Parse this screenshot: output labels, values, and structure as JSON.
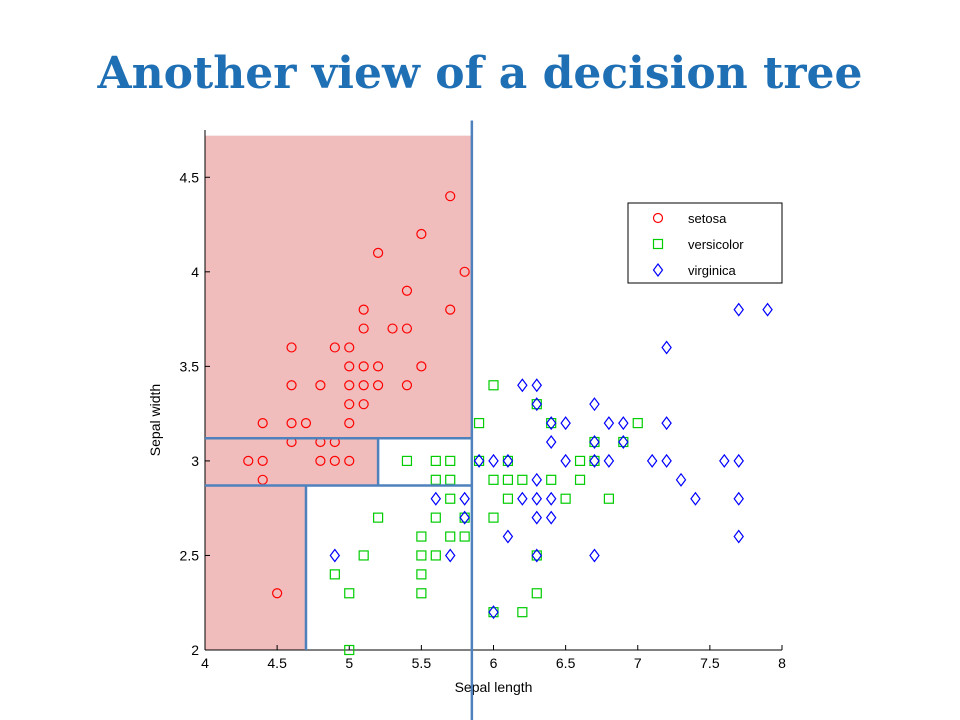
{
  "slide": {
    "title": "Another view of a decision tree"
  },
  "colors": {
    "title": "#1f6fb5",
    "region_fill": "#f0bcbc",
    "split_line": "#4f81bd",
    "setosa": "#ff0000",
    "versicolor": "#00cc00",
    "virginica": "#0000ff"
  },
  "chart_data": {
    "type": "scatter",
    "title": "",
    "xlabel": "Sepal length",
    "ylabel": "Sepal width",
    "xlim": [
      4,
      8
    ],
    "ylim": [
      2,
      4.75
    ],
    "xticks": [
      "4",
      "4.5",
      "5",
      "5.5",
      "6",
      "6.5",
      "7",
      "7.5",
      "8"
    ],
    "yticks": [
      "2",
      "2.5",
      "3",
      "3.5",
      "4",
      "4.5"
    ],
    "grid": false,
    "legend_position": "top-right",
    "series": [
      {
        "name": "setosa",
        "marker": "circle",
        "points": [
          [
            4.3,
            3.0
          ],
          [
            4.4,
            3.0
          ],
          [
            4.4,
            2.9
          ],
          [
            4.4,
            3.2
          ],
          [
            4.5,
            2.3
          ],
          [
            4.6,
            3.1
          ],
          [
            4.6,
            3.2
          ],
          [
            4.6,
            3.4
          ],
          [
            4.6,
            3.6
          ],
          [
            4.7,
            3.2
          ],
          [
            4.8,
            3.0
          ],
          [
            4.8,
            3.1
          ],
          [
            4.8,
            3.4
          ],
          [
            4.9,
            3.0
          ],
          [
            4.9,
            3.1
          ],
          [
            4.9,
            3.6
          ],
          [
            5.0,
            3.0
          ],
          [
            5.0,
            3.2
          ],
          [
            5.0,
            3.3
          ],
          [
            5.0,
            3.4
          ],
          [
            5.0,
            3.5
          ],
          [
            5.0,
            3.6
          ],
          [
            5.1,
            3.3
          ],
          [
            5.1,
            3.4
          ],
          [
            5.1,
            3.5
          ],
          [
            5.1,
            3.7
          ],
          [
            5.1,
            3.8
          ],
          [
            5.2,
            3.4
          ],
          [
            5.2,
            3.5
          ],
          [
            5.2,
            4.1
          ],
          [
            5.3,
            3.7
          ],
          [
            5.4,
            3.4
          ],
          [
            5.4,
            3.7
          ],
          [
            5.4,
            3.9
          ],
          [
            5.5,
            3.5
          ],
          [
            5.5,
            4.2
          ],
          [
            5.7,
            3.8
          ],
          [
            5.7,
            4.4
          ],
          [
            5.8,
            4.0
          ]
        ]
      },
      {
        "name": "versicolor",
        "marker": "square",
        "points": [
          [
            4.9,
            2.4
          ],
          [
            5.0,
            2.0
          ],
          [
            5.0,
            2.3
          ],
          [
            5.1,
            2.5
          ],
          [
            5.2,
            2.7
          ],
          [
            5.4,
            3.0
          ],
          [
            5.5,
            2.3
          ],
          [
            5.5,
            2.4
          ],
          [
            5.5,
            2.5
          ],
          [
            5.5,
            2.6
          ],
          [
            5.6,
            2.5
          ],
          [
            5.6,
            2.7
          ],
          [
            5.6,
            2.9
          ],
          [
            5.6,
            3.0
          ],
          [
            5.7,
            2.6
          ],
          [
            5.7,
            2.8
          ],
          [
            5.7,
            2.9
          ],
          [
            5.7,
            3.0
          ],
          [
            5.8,
            2.6
          ],
          [
            5.8,
            2.7
          ],
          [
            5.9,
            3.0
          ],
          [
            5.9,
            3.2
          ],
          [
            6.0,
            2.2
          ],
          [
            6.0,
            2.7
          ],
          [
            6.0,
            2.9
          ],
          [
            6.0,
            3.4
          ],
          [
            6.1,
            2.8
          ],
          [
            6.1,
            2.9
          ],
          [
            6.1,
            3.0
          ],
          [
            6.2,
            2.2
          ],
          [
            6.2,
            2.9
          ],
          [
            6.3,
            2.3
          ],
          [
            6.3,
            2.5
          ],
          [
            6.3,
            3.3
          ],
          [
            6.4,
            2.9
          ],
          [
            6.4,
            3.2
          ],
          [
            6.5,
            2.8
          ],
          [
            6.6,
            2.9
          ],
          [
            6.6,
            3.0
          ],
          [
            6.7,
            3.0
          ],
          [
            6.7,
            3.1
          ],
          [
            6.8,
            2.8
          ],
          [
            6.9,
            3.1
          ],
          [
            7.0,
            3.2
          ]
        ]
      },
      {
        "name": "virginica",
        "marker": "diamond",
        "points": [
          [
            4.9,
            2.5
          ],
          [
            5.6,
            2.8
          ],
          [
            5.7,
            2.5
          ],
          [
            5.8,
            2.7
          ],
          [
            5.8,
            2.8
          ],
          [
            5.9,
            3.0
          ],
          [
            6.0,
            2.2
          ],
          [
            6.0,
            3.0
          ],
          [
            6.1,
            2.6
          ],
          [
            6.1,
            3.0
          ],
          [
            6.2,
            2.8
          ],
          [
            6.2,
            3.4
          ],
          [
            6.3,
            2.5
          ],
          [
            6.3,
            2.7
          ],
          [
            6.3,
            2.8
          ],
          [
            6.3,
            2.9
          ],
          [
            6.3,
            3.3
          ],
          [
            6.3,
            3.4
          ],
          [
            6.4,
            2.7
          ],
          [
            6.4,
            2.8
          ],
          [
            6.4,
            3.1
          ],
          [
            6.4,
            3.2
          ],
          [
            6.5,
            3.0
          ],
          [
            6.5,
            3.2
          ],
          [
            6.7,
            2.5
          ],
          [
            6.7,
            3.0
          ],
          [
            6.7,
            3.1
          ],
          [
            6.7,
            3.3
          ],
          [
            6.8,
            3.0
          ],
          [
            6.8,
            3.2
          ],
          [
            6.9,
            3.1
          ],
          [
            6.9,
            3.2
          ],
          [
            7.1,
            3.0
          ],
          [
            7.2,
            3.0
          ],
          [
            7.2,
            3.2
          ],
          [
            7.2,
            3.6
          ],
          [
            7.3,
            2.9
          ],
          [
            7.4,
            2.8
          ],
          [
            7.6,
            3.0
          ],
          [
            7.7,
            2.6
          ],
          [
            7.7,
            2.8
          ],
          [
            7.7,
            3.0
          ],
          [
            7.7,
            3.8
          ],
          [
            7.9,
            3.8
          ]
        ]
      }
    ],
    "regions": [
      {
        "x": [
          4,
          5.85
        ],
        "y": [
          3.12,
          4.75
        ]
      },
      {
        "x": [
          4,
          5.2
        ],
        "y": [
          2.87,
          3.12
        ]
      },
      {
        "x": [
          4,
          4.7
        ],
        "y": [
          2.0,
          2.87
        ]
      }
    ],
    "split_lines": [
      {
        "orientation": "vertical",
        "at": 5.85,
        "y": [
          1.6,
          4.8
        ]
      },
      {
        "orientation": "horizontal",
        "at": 3.12,
        "x": [
          4,
          5.85
        ]
      },
      {
        "orientation": "vertical",
        "at": 5.2,
        "y": [
          2.87,
          3.12
        ]
      },
      {
        "orientation": "horizontal",
        "at": 2.87,
        "x": [
          4,
          5.85
        ]
      },
      {
        "orientation": "vertical",
        "at": 4.7,
        "y": [
          2.0,
          2.87
        ]
      }
    ]
  }
}
